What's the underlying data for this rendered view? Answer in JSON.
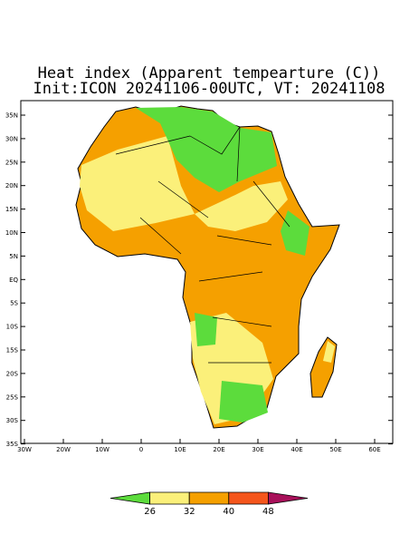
{
  "title": [
    "Heat index (Apparent tempearture (C))",
    "Init:ICON 20241106-00UTC, VT: 20241108"
  ],
  "map": {
    "lat_ticks": [
      {
        "value": 35,
        "label": "35N"
      },
      {
        "value": 30,
        "label": "30N"
      },
      {
        "value": 25,
        "label": "25N"
      },
      {
        "value": 20,
        "label": "20N"
      },
      {
        "value": 15,
        "label": "15N"
      },
      {
        "value": 10,
        "label": "10N"
      },
      {
        "value": 5,
        "label": "5N"
      },
      {
        "value": 0,
        "label": "EQ"
      },
      {
        "value": -5,
        "label": "5S"
      },
      {
        "value": -10,
        "label": "10S"
      },
      {
        "value": -15,
        "label": "15S"
      },
      {
        "value": -20,
        "label": "20S"
      },
      {
        "value": -25,
        "label": "25S"
      },
      {
        "value": -30,
        "label": "30S"
      },
      {
        "value": -35,
        "label": "35S"
      }
    ],
    "lon_ticks": [
      {
        "value": -30,
        "label": "30W"
      },
      {
        "value": -20,
        "label": "20W"
      },
      {
        "value": -10,
        "label": "10W"
      },
      0,
      {
        "value": 10,
        "label": "10E"
      },
      {
        "value": 20,
        "label": "20E"
      },
      {
        "value": 30,
        "label": "30E"
      },
      {
        "value": 40,
        "label": "40E"
      },
      {
        "value": 50,
        "label": "50E"
      },
      {
        "value": 60,
        "label": "60E"
      }
    ]
  },
  "colorbar": {
    "ticks": [
      26,
      32,
      40,
      48
    ],
    "colors": [
      "#5cdc3c",
      "#fbf07a",
      "#f5a000",
      "#f5561c",
      "#a8105a"
    ]
  }
}
